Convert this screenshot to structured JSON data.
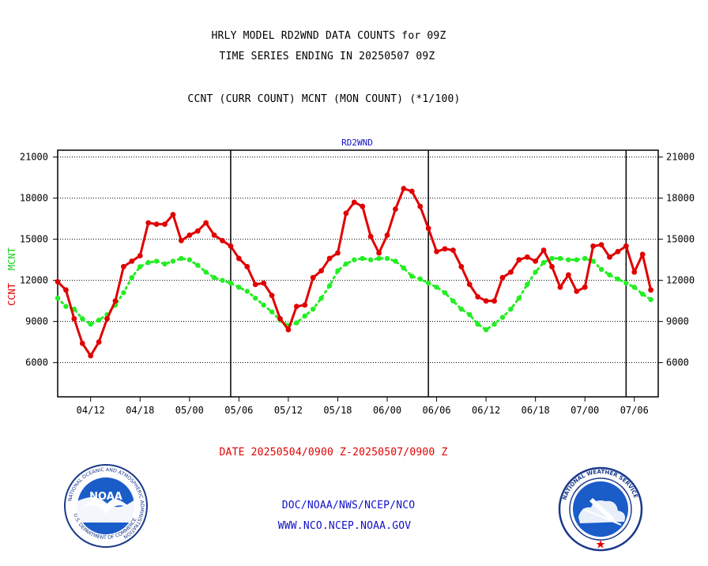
{
  "header": {
    "title_line1": "HRLY MODEL RD2WND DATA COUNTS for 09Z",
    "title_line2": "TIME SERIES ENDING IN 20250507 09Z",
    "description": "CCNT (CURR COUNT) MCNT (MON COUNT) (*1/100)"
  },
  "footer": {
    "date_range": "DATE 20250504/0900 Z-20250507/0900 Z",
    "credit_line1": "DOC/NOAA/NWS/NCEP/NCO",
    "credit_line2": "WWW.NCO.NCEP.NOAA.GOV"
  },
  "logos": {
    "noaa": {
      "center_text": "NOAA",
      "ring_text": "NATIONAL OCEANIC AND ATMOSPHERIC ADMINISTRATION",
      "ring_text_bottom": "U.S. DEPARTMENT OF COMMERCE"
    },
    "nws": {
      "ring_text": "NATIONAL WEATHER SERVICE"
    }
  },
  "colors": {
    "ccnt": "#e00000",
    "mcnt": "#22ee22",
    "axis": "#000000",
    "panel_label": "#1010c8"
  },
  "chart_data": {
    "type": "line",
    "panel_label": "RD2WND",
    "ylabel_ccnt": "CCNT",
    "ylabel_mcnt": "MCNT",
    "ylim": [
      3500,
      21500
    ],
    "yticks": [
      6000,
      9000,
      12000,
      15000,
      18000,
      21000
    ],
    "ytick_labels": [
      "6000",
      "9000",
      "12000",
      "15000",
      "18000",
      "21000"
    ],
    "xlim": [
      0,
      72.9
    ],
    "xticks": [
      4,
      10,
      16,
      22,
      28,
      34,
      40,
      46,
      52,
      58,
      64,
      70
    ],
    "xtick_labels": [
      "04/12",
      "04/18",
      "05/00",
      "05/06",
      "05/12",
      "05/18",
      "06/00",
      "06/06",
      "06/12",
      "06/18",
      "07/00",
      "07/06"
    ],
    "day_dividers": [
      21,
      45,
      69
    ],
    "grid": "horizontal dashed",
    "series": [
      {
        "name": "CCNT",
        "values": [
          11900,
          11300,
          9200,
          7400,
          6500,
          7500,
          9200,
          10500,
          13000,
          13400,
          13800,
          16200,
          16100,
          16100,
          16800,
          14900,
          15300,
          15600,
          16200,
          15300,
          14900,
          14500,
          13600,
          13000,
          11700,
          11800,
          10900,
          9200,
          8400,
          10100,
          10200,
          12200,
          12700,
          13600,
          14000,
          16900,
          17700,
          17400,
          15200,
          14000,
          15300,
          17200,
          18700,
          18500,
          17400,
          15800,
          14100,
          14300,
          14200,
          13000,
          11700,
          10800,
          10500,
          10500,
          12200,
          12600,
          13500,
          13700,
          13400,
          14200,
          13000,
          11500,
          12400,
          11200,
          11500,
          14500,
          14600,
          13700,
          14100,
          14500,
          12600,
          13900,
          11300
        ]
      },
      {
        "name": "MCNT",
        "values": [
          10700,
          10100,
          9900,
          9200,
          8800,
          9100,
          9500,
          10200,
          11100,
          12200,
          13000,
          13300,
          13400,
          13200,
          13400,
          13600,
          13500,
          13100,
          12600,
          12200,
          12000,
          11800,
          11500,
          11200,
          10700,
          10200,
          9700,
          9100,
          8700,
          8900,
          9400,
          9900,
          10700,
          11600,
          12700,
          13200,
          13500,
          13600,
          13500,
          13600,
          13600,
          13400,
          12900,
          12300,
          12100,
          11800,
          11500,
          11100,
          10500,
          9900,
          9500,
          8800,
          8400,
          8800,
          9300,
          9900,
          10700,
          11700,
          12600,
          13300,
          13600,
          13600,
          13500,
          13500,
          13600,
          13400,
          12800,
          12400,
          12100,
          11800,
          11500,
          11000,
          10600
        ]
      }
    ]
  }
}
